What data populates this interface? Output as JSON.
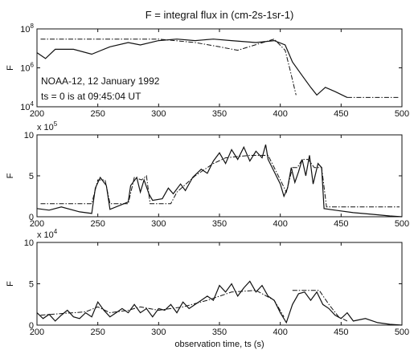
{
  "chart_data": [
    {
      "type": "line",
      "title": "F = integral flux in (cm-2s-1sr-1)",
      "ylabel": "F",
      "xlim": [
        200,
        500
      ],
      "yscale": "log",
      "ylim": [
        10000,
        100000000
      ],
      "yticks": [
        {
          "value": 10000,
          "base": "10",
          "exp": "4"
        },
        {
          "value": 1000000,
          "base": "10",
          "exp": "6"
        },
        {
          "value": 100000000,
          "base": "10",
          "exp": "8"
        }
      ],
      "xticks": [
        200,
        250,
        300,
        350,
        400,
        450,
        500
      ],
      "annotations": [
        "NOAA-12, 12 January 1992",
        "ts = 0 is at 09:45:04 UT"
      ],
      "series": [
        {
          "style": "solid",
          "points": [
            [
              200,
              6000000
            ],
            [
              207,
              3000000
            ],
            [
              215,
              9000000
            ],
            [
              230,
              9000000
            ],
            [
              245,
              5000000
            ],
            [
              260,
              12000000
            ],
            [
              275,
              20000000
            ],
            [
              285,
              15000000
            ],
            [
              300,
              25000000
            ],
            [
              315,
              30000000
            ],
            [
              330,
              25000000
            ],
            [
              345,
              30000000
            ],
            [
              360,
              25000000
            ],
            [
              380,
              20000000
            ],
            [
              395,
              25000000
            ],
            [
              404,
              15000000
            ],
            [
              410,
              2000000
            ],
            [
              418,
              400000
            ],
            [
              425,
              100000
            ],
            [
              430,
              40000
            ],
            [
              437,
              100000
            ],
            [
              445,
              60000
            ],
            [
              455,
              30000
            ]
          ]
        },
        {
          "style": "dashdot",
          "points": [
            [
              203,
              30000000
            ],
            [
              300,
              30000000
            ],
            [
              330,
              20000000
            ],
            [
              350,
              12000000
            ],
            [
              365,
              8000000
            ],
            [
              395,
              30000000
            ],
            [
              404,
              8000000
            ],
            [
              408,
              800000
            ],
            [
              413,
              40000
            ]
          ]
        },
        {
          "style": "dashdot",
          "points": [
            [
              455,
              30000
            ],
            [
              498,
              30000
            ]
          ]
        }
      ]
    },
    {
      "type": "line",
      "ylabel": "F",
      "xlim": [
        200,
        500
      ],
      "ylim": [
        0,
        10
      ],
      "y_multiplier": {
        "base": "x 10",
        "exp": "5"
      },
      "yticks": [
        0,
        5,
        10
      ],
      "xticks": [
        200,
        250,
        300,
        350,
        400,
        450,
        500
      ],
      "series": [
        {
          "style": "solid",
          "points": [
            [
              200,
              1.0
            ],
            [
              210,
              0.8
            ],
            [
              220,
              1.2
            ],
            [
              235,
              0.6
            ],
            [
              245,
              0.4
            ],
            [
              248,
              3.5
            ],
            [
              252,
              4.8
            ],
            [
              257,
              3.8
            ],
            [
              260,
              0.9
            ],
            [
              270,
              1.5
            ],
            [
              275,
              1.8
            ],
            [
              277,
              3.8
            ],
            [
              282,
              4.8
            ],
            [
              285,
              3.0
            ],
            [
              288,
              4.5
            ],
            [
              292,
              2.8
            ],
            [
              295,
              2.0
            ],
            [
              303,
              2.2
            ],
            [
              308,
              3.5
            ],
            [
              312,
              2.8
            ],
            [
              318,
              4.0
            ],
            [
              322,
              3.2
            ],
            [
              328,
              4.8
            ],
            [
              335,
              5.8
            ],
            [
              340,
              5.3
            ],
            [
              345,
              6.8
            ],
            [
              350,
              7.8
            ],
            [
              355,
              6.5
            ],
            [
              360,
              8.2
            ],
            [
              365,
              7.0
            ],
            [
              370,
              8.5
            ],
            [
              375,
              6.8
            ],
            [
              380,
              8.0
            ],
            [
              385,
              7.2
            ],
            [
              388,
              8.8
            ],
            [
              390,
              7.0
            ],
            [
              395,
              5.5
            ],
            [
              400,
              4.0
            ],
            [
              403,
              2.5
            ],
            [
              406,
              3.5
            ],
            [
              409,
              6.0
            ],
            [
              412,
              4.2
            ],
            [
              415,
              5.5
            ],
            [
              418,
              7.0
            ],
            [
              421,
              5.0
            ],
            [
              424,
              7.5
            ],
            [
              427,
              4.0
            ],
            [
              431,
              6.5
            ],
            [
              434,
              6.0
            ],
            [
              436,
              1.0
            ],
            [
              445,
              0.8
            ],
            [
              460,
              0.5
            ],
            [
              475,
              0.3
            ],
            [
              490,
              0.1
            ],
            [
              500,
              0.0
            ]
          ]
        },
        {
          "style": "dashdot",
          "points": [
            [
              203,
              1.6
            ],
            [
              245,
              1.6
            ],
            [
              250,
              4.5
            ],
            [
              256,
              4.5
            ],
            [
              260,
              1.6
            ],
            [
              275,
              1.6
            ],
            [
              280,
              4.8
            ],
            [
              286,
              4.5
            ],
            [
              290,
              5.0
            ],
            [
              293,
              1.6
            ],
            [
              310,
              1.6
            ],
            [
              315,
              3.0
            ],
            [
              330,
              5.0
            ],
            [
              345,
              6.5
            ],
            [
              355,
              7.2
            ],
            [
              375,
              7.5
            ],
            [
              390,
              7.5
            ],
            [
              400,
              4.5
            ],
            [
              405,
              3.0
            ],
            [
              410,
              6.0
            ],
            [
              414,
              6.0
            ],
            [
              418,
              7.0
            ],
            [
              423,
              7.0
            ],
            [
              428,
              6.0
            ],
            [
              434,
              6.0
            ],
            [
              438,
              1.2
            ],
            [
              498,
              1.2
            ]
          ]
        }
      ]
    },
    {
      "type": "line",
      "xlabel": "observation time, ts (s)",
      "ylabel": "F",
      "xlim": [
        200,
        500
      ],
      "ylim": [
        0,
        10
      ],
      "y_multiplier": {
        "base": "x 10",
        "exp": "4"
      },
      "yticks": [
        0,
        5,
        10
      ],
      "xticks": [
        200,
        250,
        300,
        350,
        400,
        450,
        500
      ],
      "series": [
        {
          "style": "solid",
          "points": [
            [
              200,
              1.5
            ],
            [
              205,
              0.8
            ],
            [
              210,
              1.3
            ],
            [
              215,
              0.5
            ],
            [
              220,
              1.2
            ],
            [
              225,
              1.8
            ],
            [
              230,
              1.0
            ],
            [
              235,
              0.8
            ],
            [
              240,
              1.5
            ],
            [
              245,
              1.0
            ],
            [
              250,
              2.8
            ],
            [
              255,
              1.8
            ],
            [
              260,
              1.0
            ],
            [
              265,
              1.5
            ],
            [
              270,
              2.0
            ],
            [
              275,
              1.5
            ],
            [
              280,
              2.5
            ],
            [
              285,
              1.5
            ],
            [
              290,
              2.0
            ],
            [
              295,
              1.0
            ],
            [
              300,
              2.0
            ],
            [
              305,
              1.8
            ],
            [
              310,
              2.5
            ],
            [
              315,
              1.5
            ],
            [
              320,
              2.8
            ],
            [
              325,
              2.0
            ],
            [
              330,
              2.5
            ],
            [
              335,
              3.0
            ],
            [
              340,
              3.5
            ],
            [
              345,
              3.0
            ],
            [
              350,
              4.8
            ],
            [
              355,
              4.0
            ],
            [
              360,
              5.0
            ],
            [
              365,
              3.5
            ],
            [
              370,
              4.5
            ],
            [
              375,
              5.3
            ],
            [
              380,
              4.0
            ],
            [
              385,
              4.8
            ],
            [
              390,
              3.5
            ],
            [
              395,
              3.0
            ],
            [
              400,
              1.5
            ],
            [
              405,
              0.3
            ],
            [
              410,
              2.5
            ],
            [
              415,
              3.8
            ],
            [
              420,
              4.0
            ],
            [
              425,
              3.0
            ],
            [
              430,
              4.0
            ],
            [
              435,
              2.5
            ],
            [
              440,
              2.0
            ],
            [
              445,
              1.2
            ],
            [
              450,
              0.8
            ],
            [
              455,
              1.5
            ],
            [
              460,
              0.5
            ],
            [
              470,
              0.8
            ],
            [
              480,
              0.3
            ],
            [
              490,
              0.1
            ],
            [
              500,
              0.0
            ]
          ]
        },
        {
          "style": "dashdot",
          "points": [
            [
              203,
              1.2
            ],
            [
              220,
              1.4
            ],
            [
              240,
              1.6
            ],
            [
              250,
              2.2
            ],
            [
              260,
              1.5
            ],
            [
              275,
              1.8
            ],
            [
              285,
              2.2
            ],
            [
              300,
              1.8
            ],
            [
              320,
              2.2
            ],
            [
              340,
              3.0
            ],
            [
              360,
              4.0
            ],
            [
              380,
              4.2
            ],
            [
              395,
              3.0
            ],
            [
              403,
              1.0
            ]
          ]
        },
        {
          "style": "dashdot",
          "points": [
            [
              410,
              4.2
            ],
            [
              420,
              4.2
            ],
            [
              432,
              4.2
            ],
            [
              440,
              2.5
            ],
            [
              448,
              1.0
            ],
            [
              455,
              0.5
            ]
          ]
        }
      ]
    }
  ]
}
